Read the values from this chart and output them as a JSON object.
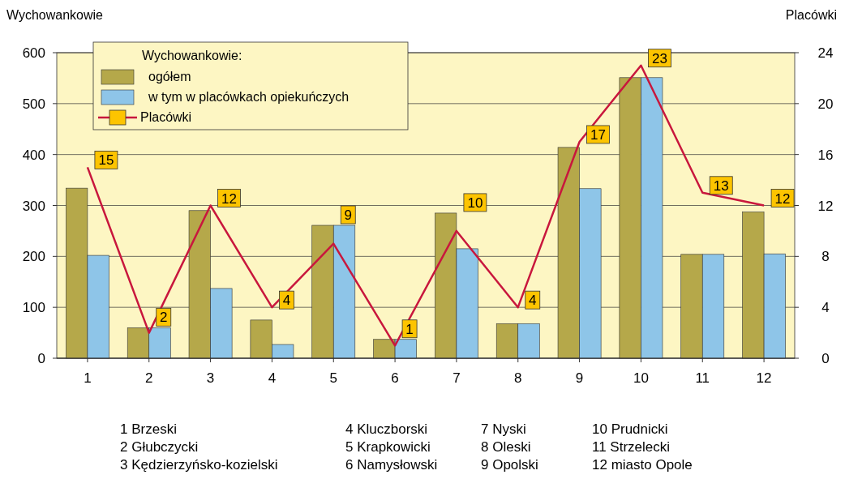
{
  "chart_data": {
    "type": "bar",
    "ylabel": "Wychowankowie",
    "y2label": "Placówki",
    "legend_title": "Wychowankowie:",
    "legend": "top left",
    "grid": "y",
    "categories": [
      "1",
      "2",
      "3",
      "4",
      "5",
      "6",
      "7",
      "8",
      "9",
      "10",
      "11",
      "12"
    ],
    "ylim": [
      0,
      600
    ],
    "yticks": [
      0,
      100,
      200,
      300,
      400,
      500,
      600
    ],
    "y2lim": [
      0,
      24
    ],
    "y2ticks": [
      0,
      4,
      8,
      12,
      16,
      20,
      24
    ],
    "series": [
      {
        "name": "ogółem",
        "color": "#b5a84a",
        "values": [
          334,
          60,
          290,
          75,
          261,
          37,
          285,
          68,
          414,
          551,
          204,
          287
        ]
      },
      {
        "name": "w tym w placówkach opiekuńczych",
        "color": "#8ec5e8",
        "values": [
          202,
          60,
          137,
          27,
          261,
          37,
          215,
          68,
          333,
          551,
          204,
          205
        ]
      },
      {
        "name": "Placówki",
        "type": "line",
        "axis": "y2",
        "color": "#c8173d",
        "marker": "none",
        "values": [
          15,
          2,
          12,
          4,
          9,
          1,
          10,
          4,
          17,
          23,
          13,
          12
        ],
        "value_labels": [
          "15",
          "2",
          "12",
          "4",
          "9",
          "1",
          "10",
          "4",
          "17",
          "23",
          "13",
          "12"
        ]
      }
    ],
    "annotations": [
      "1  Brzeski",
      "2  Głubczycki",
      "3  Kędzierzyńsko-kozielski",
      "4  Kluczborski",
      "5  Krapkowicki",
      "6  Namysłowski",
      "7  Nyski",
      "8  Oleski",
      "9  Opolski",
      "10  Prudnicki",
      "11  Strzelecki",
      "12  miasto Opole"
    ]
  }
}
